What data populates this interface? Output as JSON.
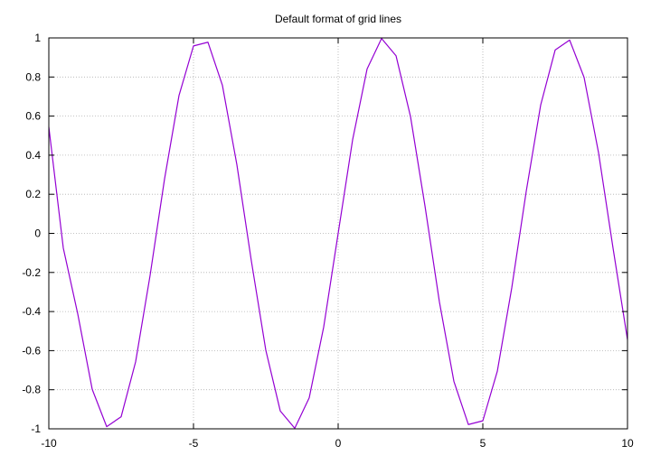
{
  "chart_data": {
    "type": "line",
    "title": "Default format of grid lines",
    "xlabel": "",
    "ylabel": "",
    "xlim": [
      -10,
      10
    ],
    "ylim": [
      -1,
      1
    ],
    "grid": true,
    "grid_style": "dotted",
    "x_ticks": [
      -10,
      -5,
      0,
      5,
      10
    ],
    "x_tick_labels": [
      "-10",
      "-5",
      "0",
      "5",
      "10"
    ],
    "y_ticks": [
      -1,
      -0.8,
      -0.6,
      -0.4,
      -0.2,
      0,
      0.2,
      0.4,
      0.6,
      0.8,
      1
    ],
    "y_tick_labels": [
      "-1",
      "-0.8",
      "-0.6",
      "-0.4",
      "-0.2",
      "0",
      "0.2",
      "0.4",
      "0.6",
      "0.8",
      "1"
    ],
    "series": [
      {
        "color": "#9400d3",
        "x": [
          -10,
          -9.5,
          -9,
          -8.5,
          -8,
          -7.5,
          -7,
          -6.5,
          -6,
          -5.5,
          -5,
          -4.5,
          -4,
          -3.5,
          -3,
          -2.5,
          -2,
          -1.5,
          -1,
          -0.5,
          0,
          0.5,
          1,
          1.5,
          2,
          2.5,
          3,
          3.5,
          4,
          4.5,
          5,
          5.5,
          6,
          6.5,
          7,
          7.5,
          8,
          8.5,
          9,
          9.5,
          10
        ],
        "y": [
          0.544,
          -0.075,
          -0.412,
          -0.798,
          -0.989,
          -0.938,
          -0.657,
          -0.215,
          0.279,
          0.706,
          0.959,
          0.978,
          0.757,
          0.351,
          -0.141,
          -0.598,
          -0.909,
          -0.997,
          -0.841,
          -0.479,
          0.0,
          0.479,
          0.841,
          0.997,
          0.909,
          0.598,
          0.141,
          -0.351,
          -0.757,
          -0.978,
          -0.959,
          -0.706,
          -0.279,
          0.215,
          0.657,
          0.938,
          0.989,
          0.798,
          0.412,
          -0.075,
          -0.544
        ]
      }
    ]
  }
}
